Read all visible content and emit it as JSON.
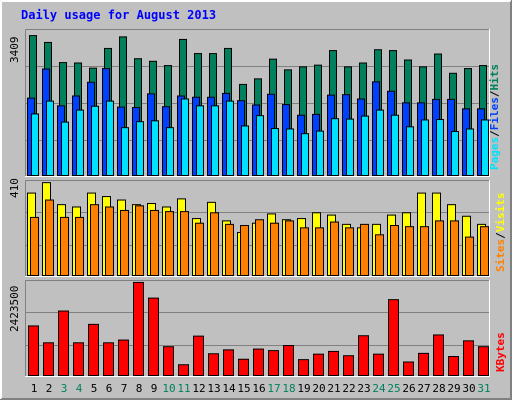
{
  "chart_data": [
    {
      "type": "bar",
      "title": "Daily usage for August 2013",
      "categories": [
        "1",
        "2",
        "3",
        "4",
        "5",
        "6",
        "7",
        "8",
        "9",
        "10",
        "11",
        "12",
        "13",
        "14",
        "15",
        "16",
        "17",
        "18",
        "19",
        "20",
        "21",
        "22",
        "23",
        "24",
        "25",
        "26",
        "27",
        "28",
        "29",
        "30",
        "31"
      ],
      "weekend_days": [
        "3",
        "4",
        "10",
        "11",
        "17",
        "18",
        "24",
        "25",
        "31"
      ],
      "y_max_label": "3409",
      "ylim": [
        0,
        3409
      ],
      "series": [
        {
          "name": "Hits",
          "color": "#00805c",
          "values": [
            3290,
            3130,
            2660,
            2650,
            2530,
            2990,
            3260,
            2750,
            2690,
            2590,
            3200,
            2870,
            2870,
            2990,
            2150,
            2280,
            2740,
            2490,
            2560,
            2600,
            2940,
            2560,
            2650,
            2960,
            2940,
            2720,
            2560,
            2860,
            2410,
            2520,
            2590
          ]
        },
        {
          "name": "Files",
          "color": "#0040ff",
          "values": [
            1830,
            2510,
            1650,
            1880,
            2200,
            2520,
            1620,
            1610,
            1930,
            1630,
            1880,
            1850,
            1850,
            1940,
            1770,
            1670,
            1920,
            1680,
            1430,
            1450,
            1900,
            1910,
            1810,
            2210,
            1990,
            1720,
            1720,
            1800,
            1800,
            1580,
            1580
          ]
        },
        {
          "name": "Pages",
          "color": "#00e0ff",
          "values": [
            1460,
            1760,
            1270,
            1550,
            1640,
            1760,
            1140,
            1280,
            1300,
            1140,
            1810,
            1650,
            1650,
            1760,
            1180,
            1420,
            1120,
            1110,
            1000,
            1060,
            1350,
            1340,
            1410,
            1550,
            1430,
            1160,
            1320,
            1330,
            1050,
            1110,
            1320
          ]
        }
      ]
    },
    {
      "type": "bar",
      "categories": [
        "1",
        "2",
        "3",
        "4",
        "5",
        "6",
        "7",
        "8",
        "9",
        "10",
        "11",
        "12",
        "13",
        "14",
        "15",
        "16",
        "17",
        "18",
        "19",
        "20",
        "21",
        "22",
        "23",
        "24",
        "25",
        "26",
        "27",
        "28",
        "29",
        "30",
        "31"
      ],
      "y_max_label": "410",
      "ylim": [
        0,
        410
      ],
      "series": [
        {
          "name": "Visits",
          "color": "#ffff00",
          "values": [
            360,
            405,
            310,
            300,
            360,
            345,
            330,
            310,
            315,
            300,
            335,
            250,
            320,
            240,
            190,
            230,
            270,
            245,
            250,
            275,
            265,
            225,
            210,
            225,
            265,
            275,
            360,
            360,
            310,
            260,
            225
          ]
        },
        {
          "name": "Sites",
          "color": "#ff8000",
          "values": [
            255,
            330,
            255,
            255,
            310,
            300,
            285,
            305,
            285,
            280,
            280,
            230,
            275,
            225,
            220,
            245,
            230,
            240,
            210,
            210,
            235,
            210,
            225,
            180,
            220,
            215,
            215,
            240,
            240,
            170,
            215
          ]
        }
      ]
    },
    {
      "type": "bar",
      "categories": [
        "1",
        "2",
        "3",
        "4",
        "5",
        "6",
        "7",
        "8",
        "9",
        "10",
        "11",
        "12",
        "13",
        "14",
        "15",
        "16",
        "17",
        "18",
        "19",
        "20",
        "21",
        "22",
        "23",
        "24",
        "25",
        "26",
        "27",
        "28",
        "29",
        "30",
        "31"
      ],
      "y_max_label": "2423500",
      "ylim": [
        0,
        2423500
      ],
      "series": [
        {
          "name": "KBytes",
          "color": "#ff0000",
          "values": [
            1290000,
            860000,
            1670000,
            860000,
            1330000,
            860000,
            930000,
            2400000,
            2000000,
            760000,
            300000,
            1030000,
            580000,
            680000,
            440000,
            700000,
            660000,
            790000,
            430000,
            570000,
            640000,
            530000,
            1040000,
            570000,
            1960000,
            370000,
            590000,
            1060000,
            510000,
            910000,
            760000
          ]
        }
      ]
    }
  ],
  "legends": {
    "top": {
      "hits": "Hits",
      "files": "Files",
      "pages": "Pages",
      "sep": "/"
    },
    "middle": {
      "visits": "Visits",
      "sites": "Sites",
      "sep": "/"
    },
    "bottom": {
      "kbytes": "KBytes"
    }
  },
  "colors": {
    "background": "#c0c0c0",
    "plot_bg": "#c0c0c0",
    "title": "#0000ff",
    "weekday_label": "#000000",
    "weekend_label": "#00805c"
  }
}
